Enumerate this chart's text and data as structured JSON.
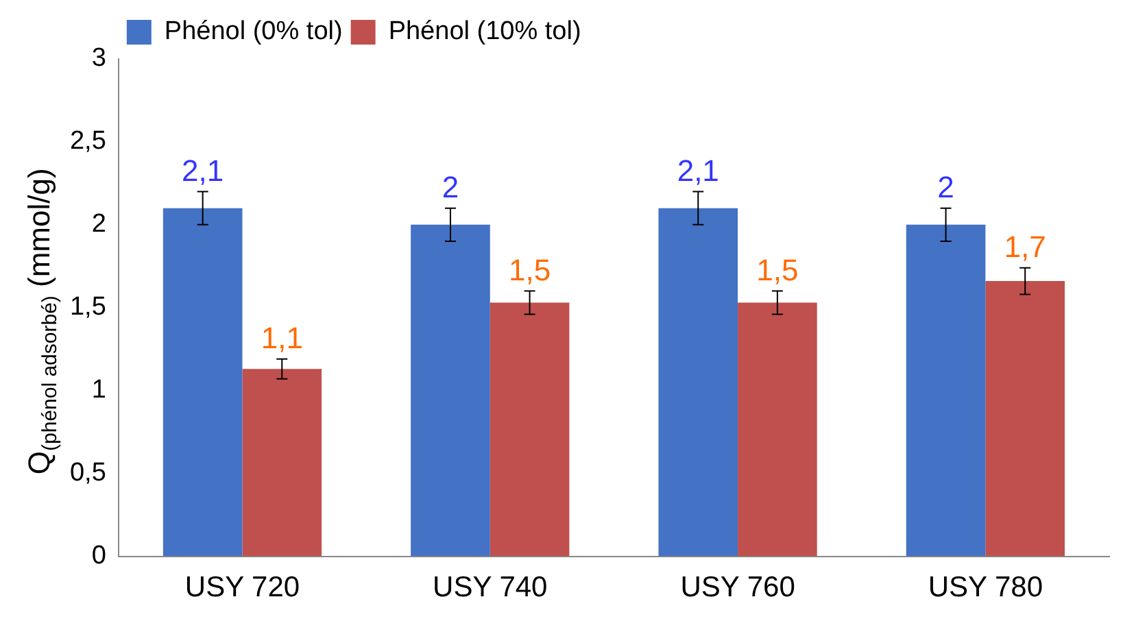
{
  "chart_data": {
    "type": "bar",
    "ylabel": "Q$_{(phénol adsorbé)}$ (mmol/g)",
    "categories": [
      "USY 720",
      "USY 740",
      "USY 760",
      "USY 780"
    ],
    "series": [
      {
        "name": "Phénol (0% tol)",
        "color": "#4472c4",
        "values": [
          2.1,
          2.0,
          2.1,
          2.0
        ],
        "errors": [
          0.1,
          0.1,
          0.1,
          0.1
        ],
        "value_labels": [
          "2,1",
          "2",
          "2,1",
          "2"
        ]
      },
      {
        "name": "Phénol (10% tol)",
        "color": "#c0504d",
        "values": [
          1.13,
          1.53,
          1.53,
          1.66
        ],
        "errors": [
          0.06,
          0.07,
          0.07,
          0.08
        ],
        "value_labels": [
          "1,1",
          "1,5",
          "1,5",
          "1,7"
        ]
      }
    ],
    "ylim": [
      0,
      3
    ],
    "yticks": [
      0,
      {
        "value": 0.5,
        "label": "0,5"
      },
      1,
      {
        "value": 1.5,
        "label": "1,5"
      },
      2,
      {
        "value": 2.5,
        "label": "2,5"
      },
      3
    ],
    "grid": false,
    "legend": "top"
  }
}
